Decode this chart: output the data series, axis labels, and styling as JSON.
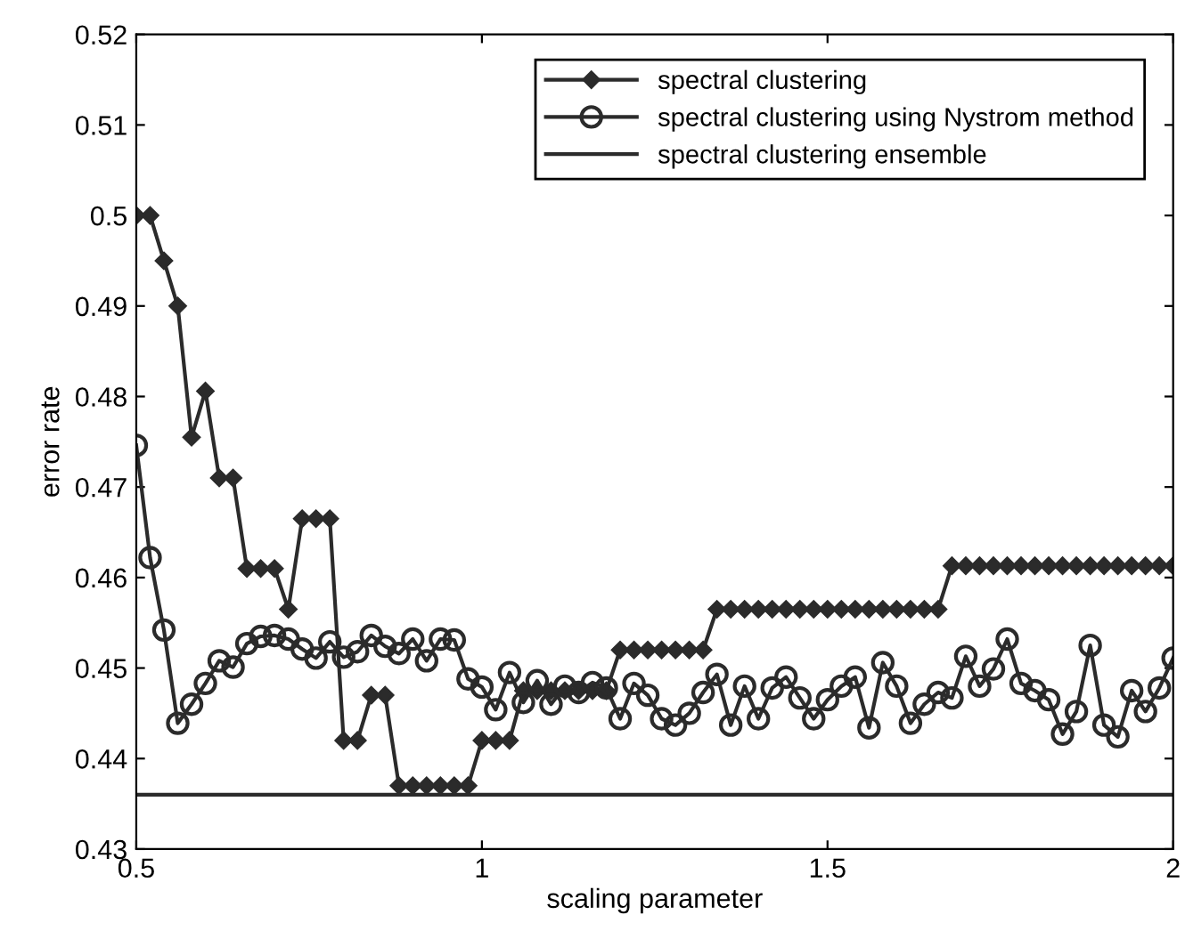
{
  "chart_data": {
    "type": "line",
    "xlabel": "scaling parameter",
    "ylabel": "error rate",
    "x": [
      0.5,
      0.52,
      0.54,
      0.56,
      0.58,
      0.6,
      0.62,
      0.64,
      0.66,
      0.68,
      0.7,
      0.72,
      0.74,
      0.76,
      0.78,
      0.8,
      0.82,
      0.84,
      0.86,
      0.88,
      0.9,
      0.92,
      0.94,
      0.96,
      0.98,
      1.0,
      1.02,
      1.04,
      1.06,
      1.08,
      1.1,
      1.12,
      1.14,
      1.16,
      1.18,
      1.2,
      1.22,
      1.24,
      1.26,
      1.28,
      1.3,
      1.32,
      1.34,
      1.36,
      1.38,
      1.4,
      1.42,
      1.44,
      1.46,
      1.48,
      1.5,
      1.52,
      1.54,
      1.56,
      1.58,
      1.6,
      1.62,
      1.64,
      1.66,
      1.68,
      1.7,
      1.72,
      1.74,
      1.76,
      1.78,
      1.8,
      1.82,
      1.84,
      1.86,
      1.88,
      1.9,
      1.92,
      1.94,
      1.96,
      1.98,
      2.0
    ],
    "series": [
      {
        "name": "spectral clustering",
        "color": "#2b2b2b",
        "marker": "diamond",
        "values": [
          0.5,
          0.5,
          0.495,
          0.49,
          0.4755,
          0.4806,
          0.471,
          0.471,
          0.461,
          0.461,
          0.461,
          0.4565,
          0.4665,
          0.4665,
          0.4665,
          0.442,
          0.442,
          0.447,
          0.447,
          0.437,
          0.437,
          0.437,
          0.437,
          0.437,
          0.437,
          0.442,
          0.442,
          0.442,
          0.4475,
          0.4475,
          0.4475,
          0.4475,
          0.4475,
          0.4475,
          0.4475,
          0.452,
          0.452,
          0.452,
          0.452,
          0.452,
          0.452,
          0.452,
          0.4565,
          0.4565,
          0.4565,
          0.4565,
          0.4565,
          0.4565,
          0.4565,
          0.4565,
          0.4565,
          0.4565,
          0.4565,
          0.4565,
          0.4565,
          0.4565,
          0.4565,
          0.4565,
          0.4565,
          0.4613,
          0.4613,
          0.4613,
          0.4613,
          0.4613,
          0.4613,
          0.4613,
          0.4613,
          0.4613,
          0.4613,
          0.4613,
          0.4613,
          0.4613,
          0.4613,
          0.4613,
          0.4613,
          0.4613
        ]
      },
      {
        "name": "spectral clustering using Nystrom method",
        "color": "#2b2b2b",
        "marker": "circle",
        "values": [
          0.4746,
          0.4622,
          0.4542,
          0.4439,
          0.446,
          0.4483,
          0.4508,
          0.4501,
          0.4527,
          0.4535,
          0.4536,
          0.4532,
          0.4521,
          0.4511,
          0.4529,
          0.4512,
          0.4518,
          0.4536,
          0.4524,
          0.4516,
          0.4532,
          0.4508,
          0.4532,
          0.4531,
          0.4488,
          0.4479,
          0.4454,
          0.4495,
          0.4462,
          0.4486,
          0.446,
          0.448,
          0.4473,
          0.4484,
          0.4478,
          0.4444,
          0.4483,
          0.447,
          0.4444,
          0.4437,
          0.445,
          0.4473,
          0.4493,
          0.4437,
          0.448,
          0.4444,
          0.4478,
          0.449,
          0.4467,
          0.4444,
          0.4465,
          0.448,
          0.449,
          0.4434,
          0.4506,
          0.448,
          0.4439,
          0.446,
          0.4473,
          0.4467,
          0.4513,
          0.448,
          0.4499,
          0.4532,
          0.4483,
          0.4475,
          0.4465,
          0.4427,
          0.4452,
          0.4525,
          0.4437,
          0.4424,
          0.4475,
          0.4452,
          0.4478,
          0.4511
        ]
      },
      {
        "name": "spectral clustering ensemble",
        "color": "#2b2b2b",
        "marker": "none",
        "x": [
          0.5,
          2
        ],
        "values": [
          0.436,
          0.436
        ]
      }
    ],
    "xlim": [
      0.5,
      2
    ],
    "xticks": [
      0.5,
      1,
      1.5,
      2
    ],
    "ylim": [
      0.43,
      0.52
    ],
    "yticks": [
      0.43,
      0.44,
      0.45,
      0.46,
      0.47,
      0.48,
      0.49,
      0.5,
      0.51,
      0.52
    ],
    "grid": false,
    "legend": "top right",
    "line_style": "solid"
  }
}
